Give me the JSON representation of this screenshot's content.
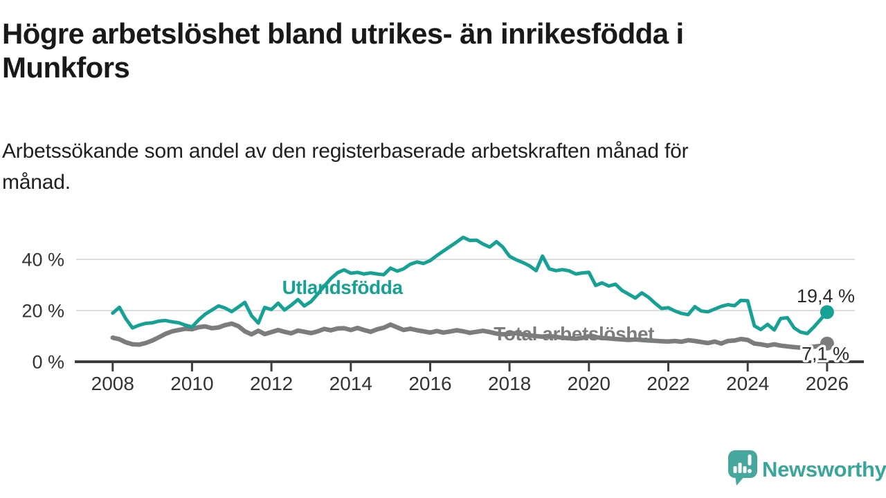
{
  "header": {
    "title": "Högre arbetslöshet bland utrikes- än inrikesfödda i\nMunkfors",
    "subtitle": "Arbetssökande som andel av den registerbaserade arbetskraften månad för\nmånad."
  },
  "chart_data": {
    "type": "line",
    "unit": "%",
    "grid": "horizontal-only",
    "legend_position": "inline-labels",
    "xlim": [
      2007.08,
      2026.7
    ],
    "ylim": [
      0,
      50.8
    ],
    "x_ticks": [
      {
        "value": 2008,
        "label": "2008"
      },
      {
        "value": 2010,
        "label": "2010"
      },
      {
        "value": 2012,
        "label": "2012"
      },
      {
        "value": 2014,
        "label": "2014"
      },
      {
        "value": 2016,
        "label": "2016"
      },
      {
        "value": 2018,
        "label": "2018"
      },
      {
        "value": 2020,
        "label": "2020"
      },
      {
        "value": 2022,
        "label": "2022"
      },
      {
        "value": 2024,
        "label": "2024"
      },
      {
        "value": 2026,
        "label": "2026"
      }
    ],
    "y_ticks": [
      {
        "value": 0,
        "label": "0 %"
      },
      {
        "value": 20,
        "label": "20 %"
      },
      {
        "value": 40,
        "label": "40 %"
      }
    ],
    "colors": {
      "grid": "#dcdcdc",
      "axis": "#3e3e3e",
      "axis_text": "#333333",
      "value_text": "#2a2a2a"
    },
    "series": [
      {
        "id": "utlandsfodda",
        "name": "Utlandsfödda",
        "color": "#16a195",
        "end_label": "19,4 %",
        "end_value": 19.4,
        "label": {
          "x": 2012.27,
          "y": 26.5
        },
        "points": [
          [
            2008.0,
            19.0
          ],
          [
            2008.17,
            21.3
          ],
          [
            2008.33,
            16.8
          ],
          [
            2008.5,
            13.2
          ],
          [
            2008.67,
            14.3
          ],
          [
            2008.83,
            15.0
          ],
          [
            2009.0,
            15.2
          ],
          [
            2009.17,
            15.9
          ],
          [
            2009.33,
            16.1
          ],
          [
            2009.5,
            15.6
          ],
          [
            2009.67,
            15.2
          ],
          [
            2009.83,
            14.3
          ],
          [
            2010.0,
            13.6
          ],
          [
            2010.17,
            16.4
          ],
          [
            2010.33,
            18.6
          ],
          [
            2010.5,
            20.2
          ],
          [
            2010.67,
            21.8
          ],
          [
            2010.83,
            21.0
          ],
          [
            2011.0,
            19.6
          ],
          [
            2011.17,
            21.4
          ],
          [
            2011.33,
            23.2
          ],
          [
            2011.5,
            18.0
          ],
          [
            2011.67,
            15.1
          ],
          [
            2011.83,
            21.2
          ],
          [
            2012.0,
            20.4
          ],
          [
            2012.17,
            22.9
          ],
          [
            2012.33,
            20.2
          ],
          [
            2012.5,
            22.1
          ],
          [
            2012.67,
            24.3
          ],
          [
            2012.83,
            21.8
          ],
          [
            2013.0,
            23.5
          ],
          [
            2013.17,
            26.5
          ],
          [
            2013.33,
            29.5
          ],
          [
            2013.5,
            32.5
          ],
          [
            2013.67,
            34.8
          ],
          [
            2013.83,
            35.9
          ],
          [
            2014.0,
            34.6
          ],
          [
            2014.17,
            34.9
          ],
          [
            2014.33,
            34.3
          ],
          [
            2014.5,
            34.7
          ],
          [
            2014.67,
            34.3
          ],
          [
            2014.83,
            34.0
          ],
          [
            2015.0,
            36.6
          ],
          [
            2015.17,
            35.4
          ],
          [
            2015.33,
            36.3
          ],
          [
            2015.5,
            38.1
          ],
          [
            2015.67,
            39.0
          ],
          [
            2015.83,
            38.4
          ],
          [
            2016.0,
            39.5
          ],
          [
            2016.17,
            41.5
          ],
          [
            2016.33,
            43.2
          ],
          [
            2016.5,
            45.0
          ],
          [
            2016.67,
            46.8
          ],
          [
            2016.83,
            48.6
          ],
          [
            2017.0,
            47.4
          ],
          [
            2017.17,
            47.5
          ],
          [
            2017.33,
            46.0
          ],
          [
            2017.5,
            44.8
          ],
          [
            2017.67,
            46.9
          ],
          [
            2017.83,
            44.8
          ],
          [
            2018.0,
            41.2
          ],
          [
            2018.17,
            39.8
          ],
          [
            2018.33,
            38.8
          ],
          [
            2018.5,
            37.5
          ],
          [
            2018.67,
            35.6
          ],
          [
            2018.83,
            41.3
          ],
          [
            2019.0,
            36.3
          ],
          [
            2019.17,
            35.6
          ],
          [
            2019.33,
            36.0
          ],
          [
            2019.5,
            35.5
          ],
          [
            2019.67,
            34.3
          ],
          [
            2019.83,
            34.7
          ],
          [
            2020.0,
            34.9
          ],
          [
            2020.17,
            29.8
          ],
          [
            2020.33,
            30.8
          ],
          [
            2020.5,
            29.6
          ],
          [
            2020.67,
            30.3
          ],
          [
            2020.83,
            27.9
          ],
          [
            2021.0,
            26.4
          ],
          [
            2021.17,
            24.9
          ],
          [
            2021.33,
            26.9
          ],
          [
            2021.5,
            25.2
          ],
          [
            2021.67,
            22.8
          ],
          [
            2021.83,
            20.8
          ],
          [
            2022.0,
            21.1
          ],
          [
            2022.17,
            19.8
          ],
          [
            2022.33,
            18.9
          ],
          [
            2022.5,
            18.4
          ],
          [
            2022.67,
            21.5
          ],
          [
            2022.83,
            19.8
          ],
          [
            2023.0,
            19.5
          ],
          [
            2023.17,
            20.6
          ],
          [
            2023.33,
            21.6
          ],
          [
            2023.5,
            22.3
          ],
          [
            2023.67,
            21.9
          ],
          [
            2023.83,
            24.0
          ],
          [
            2024.0,
            23.8
          ],
          [
            2024.17,
            14.0
          ],
          [
            2024.33,
            12.6
          ],
          [
            2024.5,
            14.6
          ],
          [
            2024.67,
            12.4
          ],
          [
            2024.83,
            16.9
          ],
          [
            2025.0,
            17.2
          ],
          [
            2025.17,
            13.2
          ],
          [
            2025.33,
            11.6
          ],
          [
            2025.5,
            11.0
          ],
          [
            2025.67,
            13.6
          ],
          [
            2025.83,
            16.4
          ],
          [
            2026.0,
            19.4
          ]
        ]
      },
      {
        "id": "total-arbetsloshet",
        "name": "Total arbetslöshet",
        "color": "#7b7c7e",
        "end_label": "7,1 %",
        "end_value": 7.1,
        "label": {
          "x": 2017.6,
          "y": 8.4
        },
        "points": [
          [
            2008.0,
            9.4
          ],
          [
            2008.17,
            8.8
          ],
          [
            2008.33,
            7.6
          ],
          [
            2008.5,
            6.8
          ],
          [
            2008.67,
            6.7
          ],
          [
            2008.83,
            7.3
          ],
          [
            2009.0,
            8.3
          ],
          [
            2009.17,
            9.6
          ],
          [
            2009.33,
            10.9
          ],
          [
            2009.5,
            11.9
          ],
          [
            2009.67,
            12.4
          ],
          [
            2009.83,
            12.9
          ],
          [
            2010.0,
            12.7
          ],
          [
            2010.17,
            13.5
          ],
          [
            2010.33,
            13.8
          ],
          [
            2010.5,
            13.1
          ],
          [
            2010.67,
            13.4
          ],
          [
            2010.83,
            14.3
          ],
          [
            2011.0,
            14.9
          ],
          [
            2011.17,
            13.9
          ],
          [
            2011.33,
            11.9
          ],
          [
            2011.5,
            10.7
          ],
          [
            2011.67,
            12.1
          ],
          [
            2011.83,
            10.8
          ],
          [
            2012.0,
            11.6
          ],
          [
            2012.17,
            12.4
          ],
          [
            2012.33,
            11.7
          ],
          [
            2012.5,
            11.1
          ],
          [
            2012.67,
            12.2
          ],
          [
            2012.83,
            11.7
          ],
          [
            2013.0,
            11.2
          ],
          [
            2013.17,
            11.9
          ],
          [
            2013.33,
            12.8
          ],
          [
            2013.5,
            12.3
          ],
          [
            2013.67,
            13.0
          ],
          [
            2013.83,
            13.1
          ],
          [
            2014.0,
            12.4
          ],
          [
            2014.17,
            13.2
          ],
          [
            2014.33,
            12.4
          ],
          [
            2014.5,
            11.7
          ],
          [
            2014.67,
            12.7
          ],
          [
            2014.83,
            13.3
          ],
          [
            2015.0,
            14.5
          ],
          [
            2015.17,
            13.4
          ],
          [
            2015.33,
            12.4
          ],
          [
            2015.5,
            12.9
          ],
          [
            2015.67,
            12.3
          ],
          [
            2015.83,
            11.9
          ],
          [
            2016.0,
            11.4
          ],
          [
            2016.17,
            12.0
          ],
          [
            2016.33,
            11.4
          ],
          [
            2016.5,
            11.8
          ],
          [
            2016.67,
            12.3
          ],
          [
            2016.83,
            11.9
          ],
          [
            2017.0,
            11.3
          ],
          [
            2017.17,
            11.7
          ],
          [
            2017.33,
            12.1
          ],
          [
            2017.5,
            11.6
          ],
          [
            2017.67,
            11.0
          ],
          [
            2017.83,
            10.7
          ],
          [
            2018.0,
            10.9
          ],
          [
            2018.17,
            11.2
          ],
          [
            2018.33,
            10.7
          ],
          [
            2018.5,
            10.3
          ],
          [
            2018.67,
            10.0
          ],
          [
            2018.83,
            9.8
          ],
          [
            2019.0,
            10.1
          ],
          [
            2019.17,
            9.7
          ],
          [
            2019.33,
            9.4
          ],
          [
            2019.5,
            9.2
          ],
          [
            2019.67,
            9.0
          ],
          [
            2019.83,
            9.3
          ],
          [
            2020.0,
            10.0
          ],
          [
            2020.17,
            9.6
          ],
          [
            2020.33,
            9.3
          ],
          [
            2020.5,
            9.1
          ],
          [
            2020.67,
            8.9
          ],
          [
            2020.83,
            8.7
          ],
          [
            2021.0,
            8.5
          ],
          [
            2021.17,
            8.7
          ],
          [
            2021.33,
            8.5
          ],
          [
            2021.5,
            8.3
          ],
          [
            2021.67,
            8.2
          ],
          [
            2021.83,
            8.0
          ],
          [
            2022.0,
            7.9
          ],
          [
            2022.17,
            8.1
          ],
          [
            2022.33,
            7.8
          ],
          [
            2022.5,
            8.4
          ],
          [
            2022.67,
            8.1
          ],
          [
            2022.83,
            7.7
          ],
          [
            2023.0,
            7.3
          ],
          [
            2023.17,
            7.9
          ],
          [
            2023.33,
            7.1
          ],
          [
            2023.5,
            8.1
          ],
          [
            2023.67,
            8.3
          ],
          [
            2023.83,
            8.9
          ],
          [
            2024.0,
            8.5
          ],
          [
            2024.17,
            7.1
          ],
          [
            2024.33,
            6.8
          ],
          [
            2024.5,
            6.3
          ],
          [
            2024.67,
            6.8
          ],
          [
            2024.83,
            6.3
          ],
          [
            2025.0,
            6.0
          ],
          [
            2025.17,
            5.7
          ],
          [
            2025.33,
            5.5
          ],
          [
            2025.5,
            5.7
          ],
          [
            2025.67,
            5.9
          ],
          [
            2025.83,
            6.2
          ],
          [
            2026.0,
            7.1
          ]
        ]
      }
    ]
  },
  "footer": {
    "brand": "Newsworthy",
    "brand_color": "#38a69b",
    "icon": "newsworthy-speech-bubble-bar-chart-icon"
  }
}
